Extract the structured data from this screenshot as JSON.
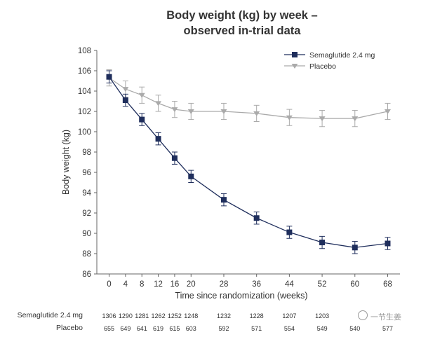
{
  "chart_data": {
    "type": "line",
    "title_line1": "Body weight (kg) by week –",
    "title_line2": "observed in-trial data",
    "xlabel": "Time since randomization (weeks)",
    "ylabel": "Body weight (kg)",
    "x_ticks": [
      0,
      4,
      8,
      12,
      16,
      20,
      28,
      36,
      44,
      52,
      60,
      68
    ],
    "y_ticks": [
      86,
      88,
      90,
      92,
      94,
      96,
      98,
      100,
      102,
      104,
      106,
      108
    ],
    "xlim": [
      -3,
      71
    ],
    "ylim": [
      86,
      108
    ],
    "legend_position": "top-right",
    "series": [
      {
        "name": "Semaglutide 2.4 mg",
        "color": "#1f2e5c",
        "marker": "square",
        "x": [
          0,
          4,
          8,
          12,
          16,
          20,
          28,
          36,
          44,
          52,
          60,
          68
        ],
        "y": [
          105.4,
          103.1,
          101.2,
          99.3,
          97.4,
          95.6,
          93.3,
          91.5,
          90.1,
          89.1,
          88.6,
          89.0
        ],
        "err": [
          0.6,
          0.6,
          0.6,
          0.6,
          0.6,
          0.6,
          0.6,
          0.6,
          0.6,
          0.6,
          0.6,
          0.6
        ]
      },
      {
        "name": "Placebo",
        "color": "#aaaaaa",
        "marker": "triangle-down",
        "x": [
          0,
          4,
          8,
          12,
          16,
          20,
          28,
          36,
          44,
          52,
          60,
          68
        ],
        "y": [
          105.3,
          104.2,
          103.6,
          102.8,
          102.2,
          102.0,
          102.0,
          101.8,
          101.4,
          101.3,
          101.3,
          102.0
        ],
        "err": [
          0.8,
          0.8,
          0.8,
          0.8,
          0.8,
          0.8,
          0.8,
          0.8,
          0.8,
          0.8,
          0.8,
          0.8
        ]
      }
    ]
  },
  "number_at_risk": {
    "semaglutide_label": "Semaglutide 2.4 mg",
    "placebo_label": "Placebo",
    "semaglutide": [
      "1306",
      "1290",
      "1281",
      "1262",
      "1252",
      "1248",
      "1232",
      "1228",
      "1207",
      "1203",
      "",
      ""
    ],
    "placebo": [
      "655",
      "649",
      "641",
      "619",
      "615",
      "603",
      "592",
      "571",
      "554",
      "549",
      "540",
      "577"
    ]
  },
  "watermark": "一节生姜"
}
